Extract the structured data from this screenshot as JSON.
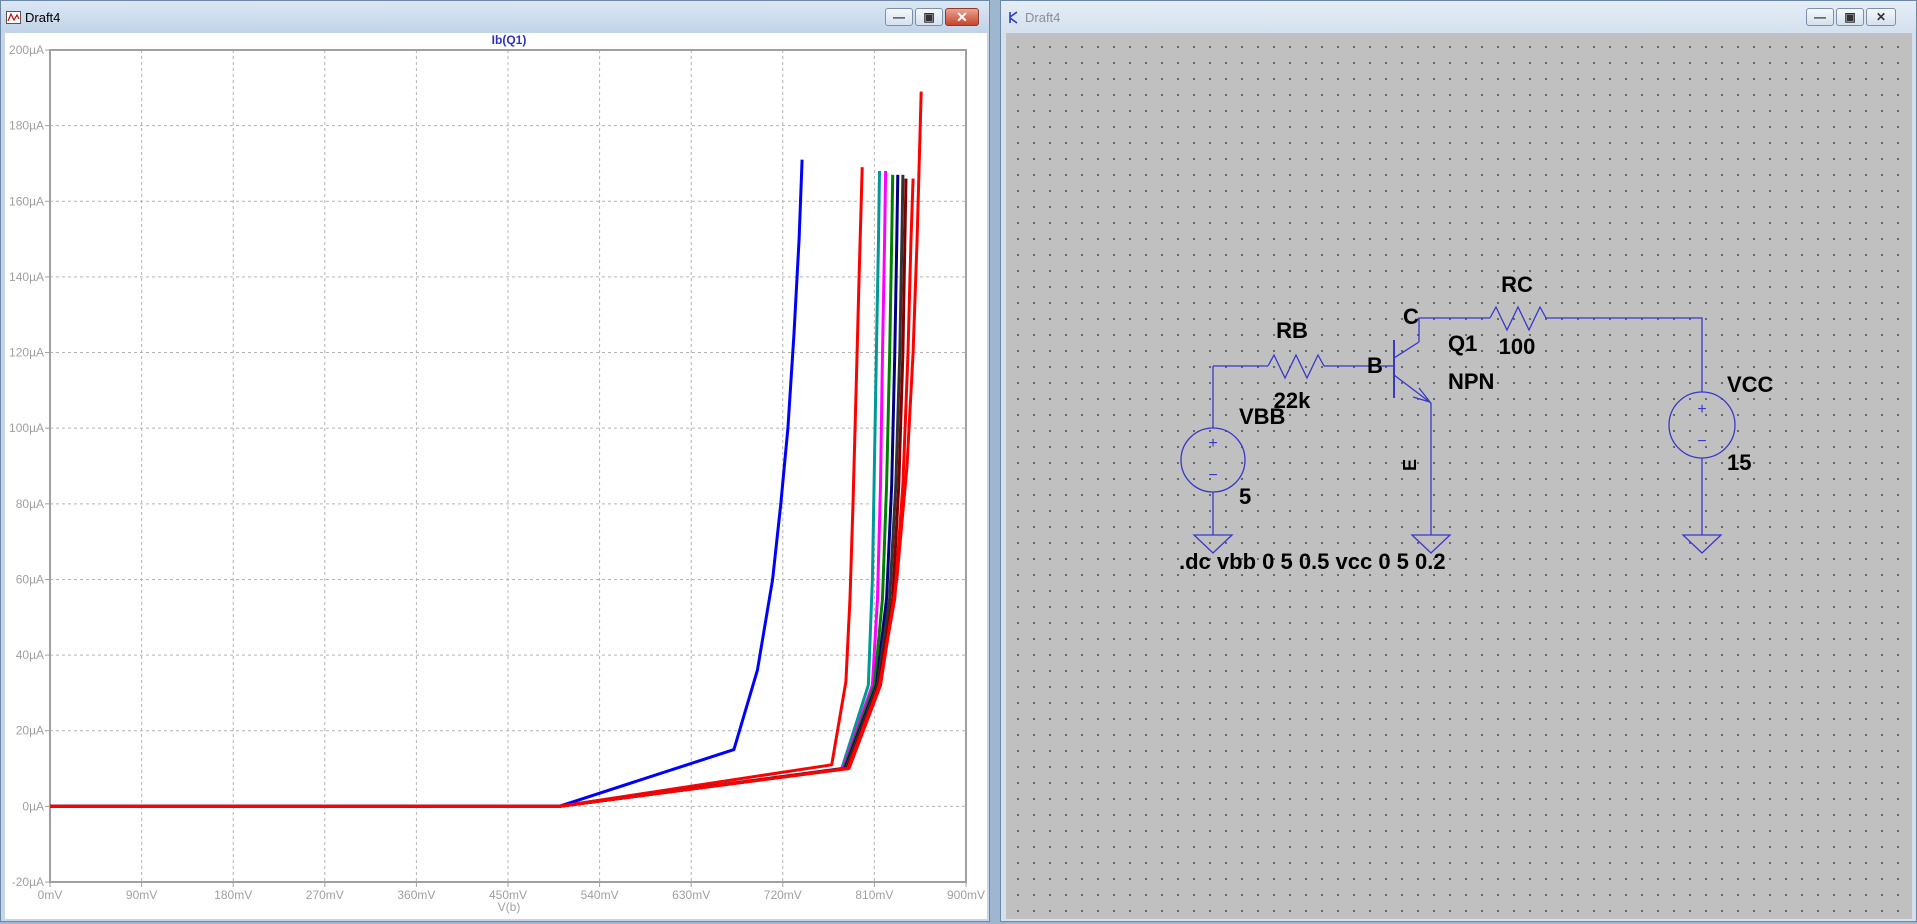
{
  "plot_window": {
    "title": "Draft4",
    "controls": [
      "minimize-icon",
      "maximize-icon",
      "close-icon"
    ]
  },
  "schematic_window": {
    "title": "Draft4",
    "controls": [
      "minimize-icon",
      "maximize-icon",
      "close-icon"
    ],
    "labels": {
      "rb_name": "RB",
      "rb_value": "22k",
      "rc_name": "RC",
      "rc_value": "100",
      "q_name": "Q1",
      "q_model": "NPN",
      "pin_b": "B",
      "pin_c": "C",
      "pin_e": "E",
      "vbb_name": "VBB",
      "vbb_value": "5",
      "vcc_name": "VCC",
      "vcc_value": "15",
      "directive": ".dc vbb 0 5 0.5 vcc 0 5 0.2"
    },
    "colors": {
      "wire": "#3838c8",
      "background": "#c0c0c0"
    }
  },
  "chart_data": {
    "type": "line",
    "title": "Ib(Q1)",
    "xlabel": "V(b)",
    "ylabel": "",
    "xlim": [
      0,
      900
    ],
    "ylim": [
      -20,
      200
    ],
    "grid": true,
    "x_ticks": [
      "0mV",
      "90mV",
      "180mV",
      "270mV",
      "360mV",
      "450mV",
      "540mV",
      "630mV",
      "720mV",
      "810mV",
      "900mV"
    ],
    "y_ticks": [
      "-20µA",
      "0µA",
      "20µA",
      "40µA",
      "60µA",
      "80µA",
      "100µA",
      "120µA",
      "140µA",
      "160µA",
      "180µA",
      "200µA"
    ],
    "series": [
      {
        "color": "#0000ff",
        "points": [
          [
            0,
            0
          ],
          [
            500,
            0
          ],
          [
            672,
            15
          ],
          [
            695,
            36
          ],
          [
            710,
            60
          ],
          [
            718,
            80
          ],
          [
            725,
            100
          ],
          [
            731,
            125
          ],
          [
            736,
            150
          ],
          [
            739,
            171
          ]
        ]
      },
      {
        "color": "#ff0000",
        "points": [
          [
            0,
            0
          ],
          [
            500,
            0
          ],
          [
            768,
            11
          ],
          [
            782,
            33
          ],
          [
            786,
            55
          ],
          [
            789,
            80
          ],
          [
            792,
            110
          ],
          [
            795,
            140
          ],
          [
            798,
            169
          ]
        ]
      },
      {
        "color": "#009999",
        "points": [
          [
            0,
            0
          ],
          [
            500,
            0
          ],
          [
            778,
            10
          ],
          [
            804,
            32
          ],
          [
            808,
            60
          ],
          [
            810,
            90
          ],
          [
            812,
            120
          ],
          [
            814,
            150
          ],
          [
            815,
            168
          ]
        ]
      },
      {
        "color": "#ff00ff",
        "points": [
          [
            0,
            0
          ],
          [
            500,
            0
          ],
          [
            779,
            10
          ],
          [
            808,
            32
          ],
          [
            813,
            55
          ],
          [
            816,
            85
          ],
          [
            818,
            120
          ],
          [
            820,
            150
          ],
          [
            821,
            168
          ]
        ]
      },
      {
        "color": "#008000",
        "points": [
          [
            0,
            0
          ],
          [
            500,
            0
          ],
          [
            780,
            10
          ],
          [
            810,
            32
          ],
          [
            818,
            55
          ],
          [
            822,
            85
          ],
          [
            825,
            120
          ],
          [
            827,
            150
          ],
          [
            828,
            167
          ]
        ]
      },
      {
        "color": "#000080",
        "points": [
          [
            0,
            0
          ],
          [
            500,
            0
          ],
          [
            781,
            10
          ],
          [
            812,
            32
          ],
          [
            822,
            55
          ],
          [
            827,
            85
          ],
          [
            830,
            120
          ],
          [
            832,
            150
          ],
          [
            833,
            167
          ]
        ]
      },
      {
        "color": "#333333",
        "points": [
          [
            0,
            0
          ],
          [
            500,
            0
          ],
          [
            782,
            10
          ],
          [
            813,
            32
          ],
          [
            825,
            55
          ],
          [
            831,
            85
          ],
          [
            835,
            120
          ],
          [
            837,
            150
          ],
          [
            838,
            167
          ]
        ]
      },
      {
        "color": "#800000",
        "points": [
          [
            0,
            0
          ],
          [
            500,
            0
          ],
          [
            783,
            10
          ],
          [
            814,
            32
          ],
          [
            828,
            55
          ],
          [
            834,
            85
          ],
          [
            838,
            120
          ],
          [
            840,
            150
          ],
          [
            841,
            166
          ]
        ]
      },
      {
        "color": "#ff0000",
        "points": [
          [
            0,
            0
          ],
          [
            500,
            0
          ],
          [
            784,
            10
          ],
          [
            815,
            32
          ],
          [
            830,
            55
          ],
          [
            838,
            85
          ],
          [
            843,
            120
          ],
          [
            846,
            150
          ],
          [
            848,
            166
          ]
        ]
      },
      {
        "color": "#ff0000",
        "points": [
          [
            0,
            0
          ],
          [
            500,
            0
          ],
          [
            785,
            10
          ],
          [
            816,
            32
          ],
          [
            832,
            60
          ],
          [
            842,
            90
          ],
          [
            848,
            120
          ],
          [
            852,
            150
          ],
          [
            856,
            189
          ]
        ]
      }
    ]
  }
}
